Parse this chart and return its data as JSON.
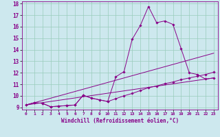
{
  "xlabel": "Windchill (Refroidissement éolien,°C)",
  "bg_color": "#cde8ee",
  "line_color": "#880088",
  "grid_color": "#99ccbb",
  "xlim": [
    -0.5,
    23.5
  ],
  "ylim": [
    8.8,
    18.2
  ],
  "xticks": [
    0,
    1,
    2,
    3,
    4,
    5,
    6,
    7,
    8,
    9,
    10,
    11,
    12,
    13,
    14,
    15,
    16,
    17,
    18,
    19,
    20,
    21,
    22,
    23
  ],
  "yticks": [
    9,
    10,
    11,
    12,
    13,
    14,
    15,
    16,
    17,
    18
  ],
  "line1_x": [
    0,
    1,
    2,
    3,
    4,
    5,
    6,
    7,
    8,
    9,
    10,
    11,
    12,
    13,
    14,
    15,
    16,
    17,
    18,
    19,
    20,
    21,
    22,
    23
  ],
  "line1_y": [
    9.2,
    9.4,
    9.35,
    9.05,
    9.1,
    9.15,
    9.2,
    10.05,
    9.8,
    9.65,
    9.5,
    11.65,
    12.1,
    14.9,
    16.1,
    17.75,
    16.35,
    16.5,
    16.2,
    14.1,
    12.0,
    11.85,
    11.45,
    11.55
  ],
  "line2_x": [
    0,
    1,
    2,
    3,
    4,
    5,
    6,
    7,
    8,
    9,
    10,
    11,
    12,
    13,
    14,
    15,
    16,
    17,
    18,
    19,
    20,
    21,
    22,
    23
  ],
  "line2_y": [
    9.2,
    9.4,
    9.35,
    9.05,
    9.1,
    9.15,
    9.2,
    10.05,
    9.8,
    9.65,
    9.5,
    9.75,
    10.0,
    10.2,
    10.45,
    10.7,
    10.85,
    11.05,
    11.2,
    11.4,
    11.55,
    11.7,
    11.85,
    12.05
  ],
  "line3_x": [
    0,
    23
  ],
  "line3_y": [
    9.2,
    11.55
  ],
  "line4_x": [
    0,
    23
  ],
  "line4_y": [
    9.2,
    13.7
  ]
}
